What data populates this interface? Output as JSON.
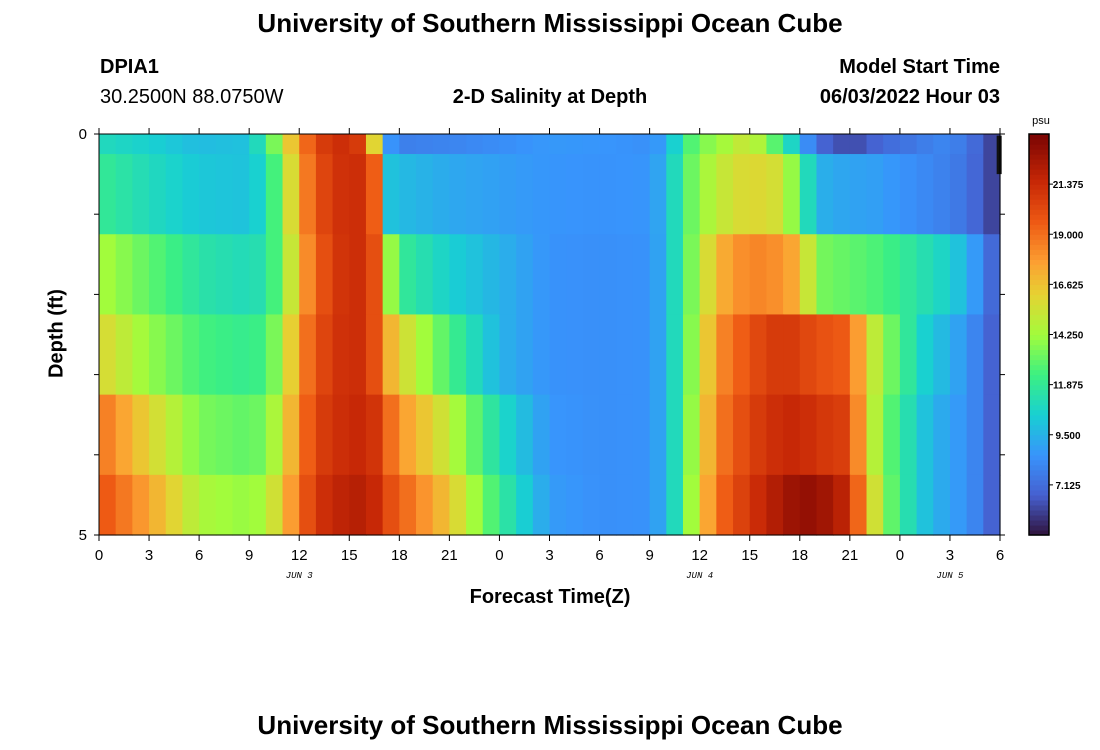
{
  "page": {
    "title": "University of Southern Mississippi Ocean Cube",
    "footer_title": "University of Southern Mississippi Ocean Cube",
    "station": "DPIA1",
    "coords": "30.2500N  88.0750W",
    "model_start_label": "Model Start Time",
    "model_start_value": "06/03/2022 Hour 03"
  },
  "chart_data": {
    "type": "heatmap",
    "title": "2-D Salinity at Depth",
    "xlabel": "Forecast Time(Z)",
    "ylabel": "Depth (ft)",
    "units": "psu",
    "x_ticks": [
      "0",
      "3",
      "6",
      "9",
      "12",
      "15",
      "18",
      "21",
      "0",
      "3",
      "6",
      "9",
      "12",
      "15",
      "18",
      "21",
      "0",
      "3",
      "6"
    ],
    "day_labels": [
      {
        "label": "JUN 3",
        "hour": 12
      },
      {
        "label": "JUN 4",
        "hour": 36
      },
      {
        "label": "JUN 5",
        "hour": 51
      }
    ],
    "x_range_hours": [
      0,
      54
    ],
    "y_ticks": [
      "0",
      "5"
    ],
    "y_range": [
      0,
      5
    ],
    "depth_layers_ft": [
      0,
      0.25,
      1.25,
      2.25,
      3.25,
      4.25,
      5.0
    ],
    "colorbar": {
      "min": 4.75,
      "max": 23.75,
      "ticks": [
        "21.375",
        "19.000",
        "16.625",
        "14.250",
        "11.875",
        "9.500",
        "7.125"
      ]
    },
    "hours": [
      0,
      3,
      6,
      9,
      10,
      11,
      12,
      13,
      15,
      16,
      16.5,
      17,
      17.5,
      18,
      21,
      24,
      27,
      30,
      33,
      34,
      35,
      36,
      37,
      39,
      41,
      42,
      43,
      45,
      46,
      47,
      48,
      49,
      50,
      51,
      52,
      53,
      54
    ],
    "salinity_by_layer": [
      [
        11.0,
        10.5,
        9.8,
        10.0,
        12.0,
        15.0,
        18.0,
        20.5,
        21.5,
        20.0,
        16.0,
        14.0,
        8.5,
        7.8,
        8.0,
        8.3,
        8.7,
        8.6,
        8.4,
        9.0,
        12.0,
        13.5,
        14.0,
        15.5,
        12.0,
        9.5,
        7.0,
        6.0,
        6.5,
        7.0,
        7.3,
        7.5,
        8.0,
        8.0,
        7.5,
        6.5,
        5.5
      ],
      [
        12.0,
        11.0,
        10.2,
        10.0,
        11.0,
        14.0,
        17.5,
        20.0,
        21.5,
        21.0,
        19.5,
        14.0,
        10.0,
        9.8,
        9.2,
        8.9,
        8.6,
        8.5,
        8.6,
        9.5,
        12.5,
        14.0,
        15.0,
        16.0,
        15.5,
        12.5,
        9.5,
        9.0,
        9.0,
        8.8,
        8.5,
        8.3,
        8.0,
        7.8,
        7.3,
        6.5,
        5.5
      ],
      [
        14.5,
        13.0,
        11.5,
        11.0,
        11.5,
        13.5,
        17.0,
        19.5,
        21.5,
        21.0,
        20.0,
        17.0,
        14.0,
        12.0,
        10.5,
        9.5,
        8.5,
        8.4,
        8.5,
        9.5,
        12.5,
        14.5,
        17.0,
        18.5,
        18.0,
        17.0,
        13.5,
        13.0,
        12.8,
        12.5,
        12.0,
        11.5,
        11.0,
        10.5,
        9.5,
        8.0,
        6.0
      ],
      [
        16.0,
        14.0,
        12.5,
        12.0,
        12.5,
        14.5,
        18.0,
        20.0,
        21.5,
        21.0,
        20.0,
        18.0,
        17.0,
        16.0,
        12.5,
        9.5,
        8.5,
        8.4,
        8.5,
        9.5,
        12.5,
        15.0,
        18.0,
        20.0,
        21.0,
        20.5,
        20.0,
        19.5,
        16.0,
        14.0,
        12.5,
        11.0,
        10.0,
        9.5,
        8.5,
        7.5,
        6.0
      ],
      [
        19.0,
        16.0,
        13.5,
        13.0,
        13.5,
        15.5,
        18.5,
        20.5,
        21.5,
        21.5,
        21.0,
        20.0,
        19.0,
        18.0,
        15.0,
        11.0,
        8.6,
        8.4,
        8.5,
        9.5,
        12.5,
        15.5,
        18.5,
        20.5,
        21.5,
        21.5,
        21.0,
        20.5,
        16.0,
        13.5,
        12.0,
        10.5,
        9.5,
        9.0,
        8.5,
        7.5,
        6.0
      ],
      [
        20.0,
        17.5,
        14.5,
        14.0,
        14.5,
        16.5,
        19.0,
        21.0,
        22.0,
        22.0,
        21.5,
        21.0,
        20.0,
        19.5,
        16.5,
        12.0,
        8.8,
        8.4,
        8.5,
        9.5,
        12.5,
        16.0,
        19.0,
        21.0,
        22.5,
        23.0,
        23.0,
        21.5,
        17.0,
        14.0,
        12.0,
        10.5,
        9.5,
        9.0,
        8.5,
        7.5,
        6.0
      ]
    ]
  }
}
